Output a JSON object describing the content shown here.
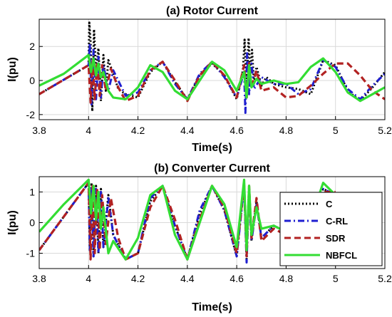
{
  "chart_data": [
    {
      "type": "line",
      "title": "(a) Rotor Current",
      "xlabel": "Time(s)",
      "ylabel": "I(pu)",
      "xlim": [
        3.8,
        5.2
      ],
      "ylim": [
        -2.3,
        3.6
      ],
      "xticks": [
        "3.8",
        "4",
        "4.2",
        "4.4",
        "4.6",
        "4.8",
        "5",
        "5.2"
      ],
      "yticks": [
        "-2",
        "0",
        "2"
      ],
      "grid": true,
      "legend": "none",
      "series": [
        {
          "name": "C",
          "x": [
            3.8,
            4.0,
            4.003,
            4.008,
            4.015,
            4.022,
            4.03,
            4.04,
            4.05,
            4.06,
            4.07,
            4.08,
            4.1,
            4.12,
            4.15,
            4.2,
            4.25,
            4.3,
            4.35,
            4.4,
            4.45,
            4.5,
            4.55,
            4.6,
            4.625,
            4.632,
            4.64,
            4.648,
            4.655,
            4.662,
            4.67,
            4.68,
            4.7,
            4.72,
            4.75,
            4.8,
            4.85,
            4.9,
            4.95,
            5.0,
            5.05,
            5.1,
            5.15,
            5.2
          ],
          "y": [
            -0.8,
            0.9,
            3.4,
            2.3,
            -1.8,
            3.0,
            0.5,
            1.9,
            -1.2,
            1.5,
            -0.6,
            1.2,
            0.4,
            -0.5,
            -0.8,
            -1.0,
            0.5,
            1.1,
            -0.1,
            -1.1,
            0.3,
            1.0,
            0.3,
            -1.1,
            0.6,
            2.4,
            -0.6,
            2.5,
            0.3,
            1.8,
            -0.2,
            0.8,
            -0.3,
            0.2,
            -0.2,
            -0.4,
            -0.5,
            -0.8,
            1.2,
            0.9,
            -0.6,
            -1.2,
            -0.4,
            0.5
          ]
        },
        {
          "name": "C-RL",
          "x": [
            3.8,
            4.0,
            4.005,
            4.012,
            4.02,
            4.03,
            4.04,
            4.05,
            4.06,
            4.08,
            4.1,
            4.15,
            4.2,
            4.25,
            4.3,
            4.35,
            4.4,
            4.45,
            4.5,
            4.55,
            4.6,
            4.63,
            4.635,
            4.642,
            4.65,
            4.66,
            4.67,
            4.7,
            4.75,
            4.8,
            4.85,
            4.9,
            4.95,
            5.0,
            5.05,
            5.1,
            5.15,
            5.2
          ],
          "y": [
            -0.8,
            0.9,
            2.2,
            -1.4,
            1.8,
            -1.1,
            1.4,
            -1.0,
            0.9,
            -0.6,
            0.6,
            -0.9,
            -0.7,
            0.6,
            1.1,
            -0.2,
            -1.1,
            0.4,
            1.1,
            0.2,
            -1.0,
            0.5,
            -1.9,
            1.6,
            -0.8,
            1.0,
            -0.5,
            0.2,
            -0.2,
            -0.2,
            -0.8,
            -0.5,
            1.2,
            0.8,
            -0.5,
            -1.1,
            -0.3,
            0.4
          ]
        },
        {
          "name": "SDR",
          "x": [
            3.8,
            4.0,
            4.008,
            4.016,
            4.025,
            4.035,
            4.045,
            4.055,
            4.07,
            4.09,
            4.12,
            4.15,
            4.2,
            4.25,
            4.3,
            4.35,
            4.4,
            4.45,
            4.5,
            4.55,
            4.6,
            4.63,
            4.64,
            4.65,
            4.66,
            4.68,
            4.7,
            4.75,
            4.8,
            4.85,
            4.9,
            4.95,
            5.0,
            5.05,
            5.1,
            5.15,
            5.2
          ],
          "y": [
            -0.8,
            0.9,
            -1.3,
            1.3,
            -1.1,
            1.1,
            -0.9,
            0.9,
            -0.6,
            0.7,
            -0.4,
            -1.2,
            -0.9,
            0.6,
            1.1,
            0.0,
            -1.2,
            0.3,
            1.1,
            0.3,
            -1.0,
            0.9,
            -1.1,
            1.0,
            -0.4,
            0.6,
            -0.6,
            -0.4,
            -1.0,
            -0.9,
            -0.3,
            0.4,
            1.0,
            1.0,
            0.3,
            -0.6,
            -1.1
          ]
        },
        {
          "name": "NBFCL",
          "x": [
            3.8,
            3.9,
            4.0,
            4.01,
            4.02,
            4.03,
            4.04,
            4.05,
            4.06,
            4.08,
            4.1,
            4.15,
            4.2,
            4.25,
            4.3,
            4.35,
            4.4,
            4.45,
            4.5,
            4.55,
            4.6,
            4.63,
            4.64,
            4.65,
            4.66,
            4.68,
            4.7,
            4.75,
            4.8,
            4.85,
            4.9,
            4.95,
            5.0,
            5.05,
            5.1,
            5.15,
            5.2
          ],
          "y": [
            -0.3,
            0.4,
            1.5,
            0.5,
            1.3,
            0.3,
            1.0,
            0.2,
            0.5,
            -0.6,
            -1.0,
            -1.1,
            -0.4,
            0.9,
            0.5,
            -0.6,
            -1.1,
            0.0,
            1.1,
            0.6,
            -0.6,
            0.5,
            -1.0,
            0.9,
            -0.4,
            0.1,
            -0.2,
            0.0,
            -0.2,
            -0.1,
            0.8,
            1.3,
            0.5,
            -0.7,
            -1.2,
            -0.8,
            -0.4
          ]
        }
      ]
    },
    {
      "type": "line",
      "title": "(b) Converter Current",
      "xlabel": "Time(s)",
      "ylabel": "I(pu)",
      "xlim": [
        3.8,
        5.2
      ],
      "ylim": [
        -1.5,
        1.5
      ],
      "xticks": [
        "3.8",
        "4",
        "4.2",
        "4.4",
        "4.6",
        "4.8",
        "5",
        "5.2"
      ],
      "yticks": [
        "-1",
        "0",
        "1"
      ],
      "grid": true,
      "legend": "right",
      "series": [
        {
          "name": "C",
          "x": [
            3.8,
            4.0,
            4.005,
            4.012,
            4.02,
            4.03,
            4.04,
            4.05,
            4.06,
            4.08,
            4.1,
            4.15,
            4.2,
            4.25,
            4.3,
            4.35,
            4.4,
            4.45,
            4.5,
            4.55,
            4.6,
            4.63,
            4.64,
            4.65,
            4.66,
            4.68,
            4.7,
            4.75,
            4.8,
            4.85,
            4.9,
            4.95,
            5.0
          ],
          "y": [
            -0.9,
            1.3,
            -0.8,
            1.3,
            -1.1,
            1.2,
            -1.0,
            1.1,
            -0.8,
            0.9,
            -0.4,
            -1.2,
            -1.0,
            0.7,
            1.2,
            -0.1,
            -1.2,
            0.3,
            1.2,
            0.4,
            -1.1,
            1.3,
            -1.2,
            1.2,
            -0.6,
            0.7,
            -0.5,
            -0.1,
            -0.3,
            -0.2,
            0.0,
            1.1,
            0.9
          ]
        },
        {
          "name": "C-RL",
          "x": [
            3.8,
            4.0,
            4.005,
            4.012,
            4.02,
            4.03,
            4.04,
            4.05,
            4.06,
            4.08,
            4.1,
            4.15,
            4.2,
            4.25,
            4.3,
            4.35,
            4.4,
            4.45,
            4.5,
            4.55,
            4.6,
            4.63,
            4.64,
            4.65,
            4.66,
            4.68,
            4.7,
            4.75,
            4.8,
            4.85,
            4.9,
            4.95,
            5.0
          ],
          "y": [
            -0.9,
            1.3,
            -0.9,
            1.2,
            -1.1,
            1.1,
            -1.0,
            1.0,
            -0.8,
            0.8,
            -0.4,
            -1.2,
            -1.0,
            0.8,
            1.2,
            -0.1,
            -1.2,
            0.4,
            1.2,
            0.4,
            -1.1,
            1.2,
            -1.3,
            1.1,
            -0.6,
            0.6,
            -0.5,
            -0.1,
            -0.3,
            -0.2,
            0.0,
            1.1,
            0.9
          ]
        },
        {
          "name": "SDR",
          "x": [
            3.8,
            4.0,
            4.008,
            4.016,
            4.025,
            4.035,
            4.045,
            4.055,
            4.07,
            4.09,
            4.12,
            4.15,
            4.2,
            4.25,
            4.3,
            4.35,
            4.4,
            4.45,
            4.5,
            4.55,
            4.6,
            4.63,
            4.64,
            4.65,
            4.66,
            4.68,
            4.7,
            4.75,
            4.8,
            4.85,
            4.9,
            4.95,
            5.0
          ],
          "y": [
            -0.9,
            1.3,
            -1.2,
            1.2,
            -1.0,
            1.1,
            -0.9,
            0.9,
            -0.7,
            0.8,
            -0.5,
            -1.2,
            -1.0,
            0.5,
            1.2,
            0.1,
            -1.2,
            0.1,
            1.2,
            0.5,
            -1.0,
            1.3,
            -1.1,
            1.2,
            -0.5,
            0.8,
            -0.6,
            -0.2,
            -0.4,
            -0.2,
            0.1,
            1.0,
            1.0
          ]
        },
        {
          "name": "NBFCL",
          "x": [
            3.8,
            3.9,
            4.0,
            4.01,
            4.02,
            4.03,
            4.04,
            4.05,
            4.06,
            4.08,
            4.1,
            4.15,
            4.2,
            4.25,
            4.3,
            4.35,
            4.4,
            4.45,
            4.5,
            4.55,
            4.6,
            4.63,
            4.64,
            4.65,
            4.66,
            4.68,
            4.7,
            4.75,
            4.8,
            4.85,
            4.9,
            4.95,
            5.0
          ],
          "y": [
            -0.3,
            0.6,
            1.4,
            0.3,
            1.2,
            0.1,
            1.0,
            -0.2,
            0.5,
            -1.0,
            -0.6,
            -1.2,
            -0.5,
            0.9,
            1.2,
            -0.4,
            -1.2,
            0.0,
            1.2,
            0.6,
            -0.8,
            1.4,
            -0.9,
            1.2,
            -0.4,
            0.5,
            -0.2,
            -0.1,
            -0.3,
            -0.2,
            0.1,
            1.3,
            0.9
          ]
        }
      ]
    }
  ],
  "legend": {
    "entries": [
      {
        "label": "C",
        "color": "#000000",
        "dash": "dotted"
      },
      {
        "label": "C-RL",
        "color": "#1f1fd0",
        "dash": "dashdot"
      },
      {
        "label": "SDR",
        "color": "#b22222",
        "dash": "dashed"
      },
      {
        "label": "NBFCL",
        "color": "#33dd33",
        "dash": "solid"
      }
    ]
  }
}
